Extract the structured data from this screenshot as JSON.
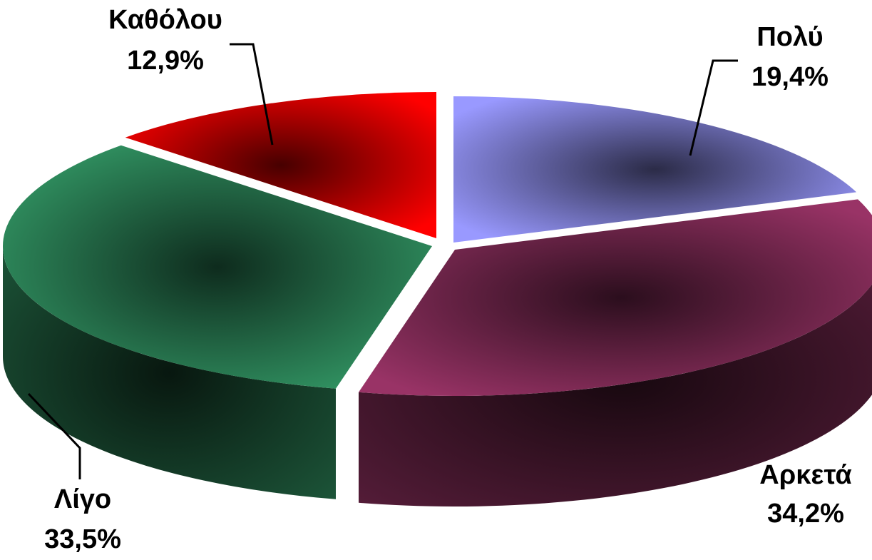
{
  "chart_data": {
    "type": "pie",
    "style": "3d-exploded",
    "legend": "none",
    "slices": [
      {
        "name": "Πολύ",
        "label": "19,4%",
        "value": 19.4,
        "color": "#9999ff"
      },
      {
        "name": "Αρκετά",
        "label": "34,2%",
        "value": 34.2,
        "color": "#993366"
      },
      {
        "name": "Λίγο",
        "label": "33,5%",
        "value": 33.5,
        "color": "#339966"
      },
      {
        "name": "Καθόλου",
        "label": "12,9%",
        "value": 12.9,
        "color": "#ff0000"
      }
    ]
  }
}
